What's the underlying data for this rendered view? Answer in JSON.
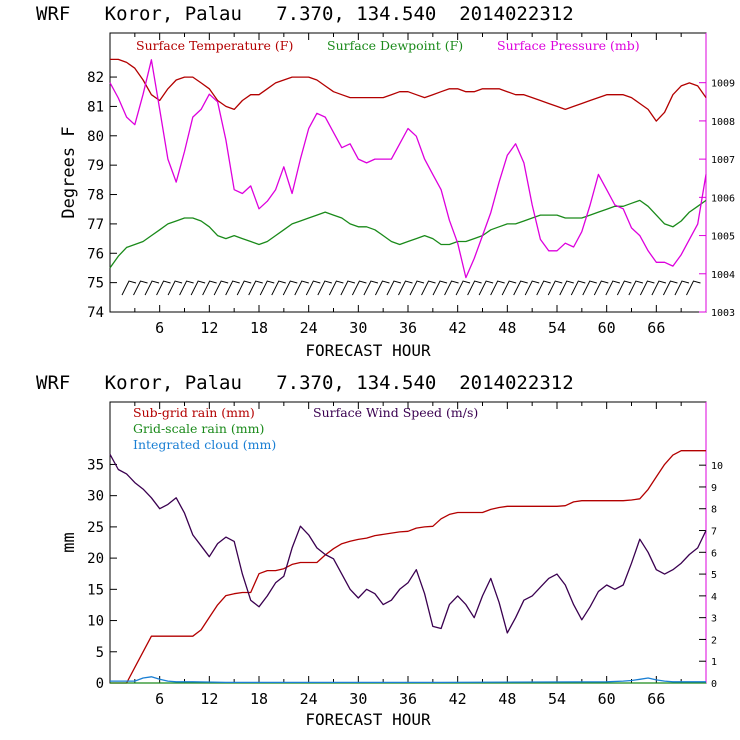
{
  "chart_data": [
    {
      "type": "line",
      "title": "WRF   Koror, Palau   7.370, 134.540  2014022312",
      "xlabel": "FORECAST HOUR",
      "ylabel": "Degrees F",
      "x_ticks": [
        6,
        12,
        18,
        24,
        30,
        36,
        42,
        48,
        54,
        60,
        66
      ],
      "x_tick_labels": [
        "6",
        "12",
        "18",
        "24",
        "30",
        "36",
        "42",
        "48",
        "54",
        "60",
        "66"
      ],
      "xlim": [
        0,
        72
      ],
      "ylim": [
        74,
        83.5
      ],
      "y_ticks": [
        74,
        75,
        76,
        77,
        78,
        79,
        80,
        81,
        82
      ],
      "y_tick_labels": [
        "74",
        "75",
        "76",
        "77",
        "78",
        "79",
        "80",
        "81",
        "82"
      ],
      "y2lim": [
        1003,
        1010.3
      ],
      "y2_ticks": [
        1003,
        1004,
        1005,
        1006,
        1007,
        1008,
        1009
      ],
      "y2_tick_labels": [
        "1003",
        "1004",
        "1005",
        "1006",
        "1007",
        "1008",
        "1009"
      ],
      "legend": [
        "Surface Temperature (F)",
        "Surface Dewpoint (F)",
        "Surface Pressure (mb)"
      ],
      "series": [
        {
          "name": "Surface Temperature (F)",
          "axis": "left",
          "color": "#b30000",
          "x": [
            0,
            1,
            2,
            3,
            4,
            5,
            6,
            7,
            8,
            9,
            10,
            11,
            12,
            13,
            14,
            15,
            16,
            17,
            18,
            19,
            20,
            21,
            22,
            23,
            24,
            25,
            26,
            27,
            28,
            29,
            30,
            31,
            32,
            33,
            34,
            35,
            36,
            37,
            38,
            39,
            40,
            41,
            42,
            43,
            44,
            45,
            46,
            47,
            48,
            49,
            50,
            51,
            52,
            53,
            54,
            55,
            56,
            57,
            58,
            59,
            60,
            61,
            62,
            63,
            64,
            65,
            66,
            67,
            68,
            69,
            70,
            71,
            72
          ],
          "values": [
            82.6,
            82.6,
            82.5,
            82.3,
            81.9,
            81.4,
            81.2,
            81.6,
            81.9,
            82.0,
            82.0,
            81.8,
            81.6,
            81.2,
            81.0,
            80.9,
            81.2,
            81.4,
            81.4,
            81.6,
            81.8,
            81.9,
            82.0,
            82.0,
            82.0,
            81.9,
            81.7,
            81.5,
            81.4,
            81.3,
            81.3,
            81.3,
            81.3,
            81.3,
            81.4,
            81.5,
            81.5,
            81.4,
            81.3,
            81.4,
            81.5,
            81.6,
            81.6,
            81.5,
            81.5,
            81.6,
            81.6,
            81.6,
            81.5,
            81.4,
            81.4,
            81.3,
            81.2,
            81.1,
            81.0,
            80.9,
            81.0,
            81.1,
            81.2,
            81.3,
            81.4,
            81.4,
            81.4,
            81.3,
            81.1,
            80.9,
            80.5,
            80.8,
            81.4,
            81.7,
            81.8,
            81.7,
            81.3
          ]
        },
        {
          "name": "Surface Dewpoint (F)",
          "axis": "left",
          "color": "#1a8a1a",
          "x": [
            0,
            1,
            2,
            3,
            4,
            5,
            6,
            7,
            8,
            9,
            10,
            11,
            12,
            13,
            14,
            15,
            16,
            17,
            18,
            19,
            20,
            21,
            22,
            23,
            24,
            25,
            26,
            27,
            28,
            29,
            30,
            31,
            32,
            33,
            34,
            35,
            36,
            37,
            38,
            39,
            40,
            41,
            42,
            43,
            44,
            45,
            46,
            47,
            48,
            49,
            50,
            51,
            52,
            53,
            54,
            55,
            56,
            57,
            58,
            59,
            60,
            61,
            62,
            63,
            64,
            65,
            66,
            67,
            68,
            69,
            70,
            71,
            72
          ],
          "values": [
            75.5,
            75.9,
            76.2,
            76.3,
            76.4,
            76.6,
            76.8,
            77.0,
            77.1,
            77.2,
            77.2,
            77.1,
            76.9,
            76.6,
            76.5,
            76.6,
            76.5,
            76.4,
            76.3,
            76.4,
            76.6,
            76.8,
            77.0,
            77.1,
            77.2,
            77.3,
            77.4,
            77.3,
            77.2,
            77.0,
            76.9,
            76.9,
            76.8,
            76.6,
            76.4,
            76.3,
            76.4,
            76.5,
            76.6,
            76.5,
            76.3,
            76.3,
            76.4,
            76.4,
            76.5,
            76.6,
            76.8,
            76.9,
            77.0,
            77.0,
            77.1,
            77.2,
            77.3,
            77.3,
            77.3,
            77.2,
            77.2,
            77.2,
            77.3,
            77.4,
            77.5,
            77.6,
            77.6,
            77.7,
            77.8,
            77.6,
            77.3,
            77.0,
            76.9,
            77.1,
            77.4,
            77.6,
            77.8
          ]
        },
        {
          "name": "Surface Pressure (mb)",
          "axis": "right",
          "color": "#dd00dd",
          "x": [
            0,
            1,
            2,
            3,
            4,
            5,
            6,
            7,
            8,
            9,
            10,
            11,
            12,
            13,
            14,
            15,
            16,
            17,
            18,
            19,
            20,
            21,
            22,
            23,
            24,
            25,
            26,
            27,
            28,
            29,
            30,
            31,
            32,
            33,
            34,
            35,
            36,
            37,
            38,
            39,
            40,
            41,
            42,
            43,
            44,
            45,
            46,
            47,
            48,
            49,
            50,
            51,
            52,
            53,
            54,
            55,
            56,
            57,
            58,
            59,
            60,
            61,
            62,
            63,
            64,
            65,
            66,
            67,
            68,
            69,
            70,
            71,
            72
          ],
          "values": [
            1009.0,
            1008.6,
            1008.1,
            1007.9,
            1008.7,
            1009.6,
            1008.3,
            1007.0,
            1006.4,
            1007.2,
            1008.1,
            1008.3,
            1008.7,
            1008.5,
            1007.5,
            1006.2,
            1006.1,
            1006.3,
            1005.7,
            1005.9,
            1006.2,
            1006.8,
            1006.1,
            1007.0,
            1007.8,
            1008.2,
            1008.1,
            1007.7,
            1007.3,
            1007.4,
            1007.0,
            1006.9,
            1007.0,
            1007.0,
            1007.0,
            1007.4,
            1007.8,
            1007.6,
            1007.0,
            1006.6,
            1006.2,
            1005.4,
            1004.8,
            1003.9,
            1004.4,
            1005.0,
            1005.6,
            1006.4,
            1007.1,
            1007.4,
            1006.9,
            1005.8,
            1004.9,
            1004.6,
            1004.6,
            1004.8,
            1004.7,
            1005.1,
            1005.8,
            1006.6,
            1006.2,
            1005.8,
            1005.7,
            1005.2,
            1005.0,
            1004.6,
            1004.3,
            1004.3,
            1004.2,
            1004.5,
            1004.9,
            1005.3,
            1006.6
          ]
        }
      ],
      "wind_barbs": {
        "y_level": 74.85,
        "count": 50,
        "color": "#000000"
      }
    },
    {
      "type": "line",
      "title": "WRF   Koror, Palau   7.370, 134.540  2014022312",
      "xlabel": "FORECAST HOUR",
      "ylabel": "mm",
      "x_ticks": [
        6,
        12,
        18,
        24,
        30,
        36,
        42,
        48,
        54,
        60,
        66
      ],
      "x_tick_labels": [
        "6",
        "12",
        "18",
        "24",
        "30",
        "36",
        "42",
        "48",
        "54",
        "60",
        "66"
      ],
      "xlim": [
        0,
        72
      ],
      "ylim": [
        0,
        45
      ],
      "y_ticks": [
        0,
        5,
        10,
        15,
        20,
        25,
        30,
        35
      ],
      "y_tick_labels": [
        "0",
        "5",
        "10",
        "15",
        "20",
        "25",
        "30",
        "35"
      ],
      "y2lim": [
        0,
        12.9
      ],
      "y2_ticks": [
        0,
        1,
        2,
        3,
        4,
        5,
        6,
        7,
        8,
        9,
        10
      ],
      "y2_tick_labels": [
        "0",
        "1",
        "2",
        "3",
        "4",
        "5",
        "6",
        "7",
        "8",
        "9",
        "10"
      ],
      "legend": [
        "Sub-grid rain (mm)",
        "Grid-scale rain (mm)",
        "Integrated cloud (mm)",
        "Surface Wind Speed (m/s)"
      ],
      "series": [
        {
          "name": "Sub-grid rain (mm)",
          "axis": "left",
          "color": "#b30000",
          "x": [
            0,
            2,
            3,
            4,
            5,
            6,
            7,
            8,
            9,
            10,
            11,
            12,
            13,
            14,
            15,
            16,
            17,
            18,
            19,
            20,
            21,
            22,
            23,
            24,
            25,
            26,
            27,
            28,
            29,
            30,
            31,
            32,
            33,
            34,
            35,
            36,
            37,
            38,
            39,
            40,
            41,
            42,
            43,
            44,
            45,
            46,
            47,
            48,
            49,
            50,
            51,
            52,
            53,
            54,
            55,
            56,
            57,
            58,
            59,
            60,
            61,
            62,
            63,
            64,
            65,
            66,
            67,
            68,
            69,
            70,
            71,
            72
          ],
          "values": [
            0,
            0,
            2.5,
            5,
            7.5,
            7.5,
            7.5,
            7.5,
            7.5,
            7.5,
            8.5,
            10.5,
            12.5,
            14,
            14.3,
            14.5,
            14.5,
            17.5,
            18,
            18,
            18.3,
            19,
            19.3,
            19.3,
            19.3,
            20.5,
            21.5,
            22.3,
            22.7,
            23,
            23.2,
            23.6,
            23.8,
            24,
            24.2,
            24.3,
            24.8,
            25,
            25.1,
            26.3,
            27,
            27.3,
            27.3,
            27.3,
            27.3,
            27.8,
            28.1,
            28.3,
            28.3,
            28.3,
            28.3,
            28.3,
            28.3,
            28.3,
            28.4,
            29,
            29.2,
            29.2,
            29.2,
            29.2,
            29.2,
            29.2,
            29.3,
            29.5,
            31,
            33,
            35,
            36.5,
            37.2,
            37.2,
            37.2,
            37.2
          ]
        },
        {
          "name": "Grid-scale rain (mm)",
          "axis": "left",
          "color": "#1a8a1a",
          "x": [
            0,
            72
          ],
          "values": [
            0,
            0
          ]
        },
        {
          "name": "Integrated cloud (mm)",
          "axis": "left",
          "color": "#1a7fd4",
          "x": [
            0,
            3,
            4,
            5,
            6,
            7,
            8,
            10,
            14,
            24,
            40,
            60,
            62,
            63,
            64,
            65,
            66,
            67,
            68,
            72
          ],
          "values": [
            0.3,
            0.3,
            0.8,
            1.0,
            0.6,
            0.3,
            0.2,
            0.2,
            0.1,
            0.1,
            0.1,
            0.2,
            0.3,
            0.4,
            0.6,
            0.8,
            0.5,
            0.3,
            0.2,
            0.2
          ]
        },
        {
          "name": "Surface Wind Speed (m/s)",
          "axis": "right",
          "color": "#3a0050",
          "x": [
            0,
            1,
            2,
            3,
            4,
            5,
            6,
            7,
            8,
            9,
            10,
            11,
            12,
            13,
            14,
            15,
            16,
            17,
            18,
            19,
            20,
            21,
            22,
            23,
            24,
            25,
            26,
            27,
            28,
            29,
            30,
            31,
            32,
            33,
            34,
            35,
            36,
            37,
            38,
            39,
            40,
            41,
            42,
            43,
            44,
            45,
            46,
            47,
            48,
            49,
            50,
            51,
            52,
            53,
            54,
            55,
            56,
            57,
            58,
            59,
            60,
            61,
            62,
            63,
            64,
            65,
            66,
            67,
            68,
            69,
            70,
            71,
            72
          ],
          "values": [
            10.5,
            9.8,
            9.6,
            9.2,
            8.9,
            8.5,
            8.0,
            8.2,
            8.5,
            7.8,
            6.8,
            6.3,
            5.8,
            6.4,
            6.7,
            6.5,
            5.0,
            3.8,
            3.5,
            4.0,
            4.6,
            4.9,
            6.2,
            7.2,
            6.8,
            6.2,
            5.9,
            5.7,
            5.0,
            4.3,
            3.9,
            4.3,
            4.1,
            3.6,
            3.8,
            4.3,
            4.6,
            5.2,
            4.1,
            2.6,
            2.5,
            3.6,
            4.0,
            3.6,
            3.0,
            4.0,
            4.8,
            3.7,
            2.3,
            3.0,
            3.8,
            4.0,
            4.4,
            4.8,
            5.0,
            4.5,
            3.6,
            2.9,
            3.5,
            4.2,
            4.5,
            4.3,
            4.5,
            5.5,
            6.6,
            6.0,
            5.2,
            5.0,
            5.2,
            5.5,
            5.9,
            6.2,
            7.0
          ]
        }
      ]
    }
  ]
}
